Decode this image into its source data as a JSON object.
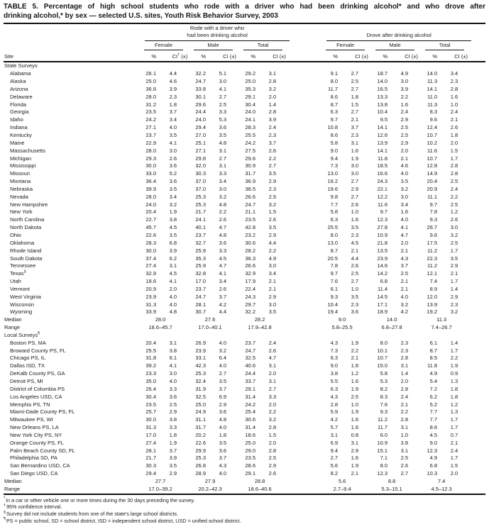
{
  "page": {
    "title_line1": "TABLE 5. Percentage of high school students who rode with a driver who had been drinking alcohol* and who drove after",
    "title_line2": "drinking alcohol,* by sex — selected U.S. sites, Youth Risk Behavior Survey, 2003"
  },
  "table": {
    "site_header": "Site",
    "pct_header": "%",
    "ci_base": "CI",
    "ci_dagger": "†",
    "ci_pm": " (±)",
    "ci_plain": "CI (±)",
    "groups": [
      {
        "title_lines": [
          "Rode with a driver who",
          "had been drinking alcohol"
        ],
        "sub": [
          "Female",
          "Male",
          "Total"
        ]
      },
      {
        "title_lines": [
          "Drove after drinking alcohol"
        ],
        "sub": [
          "Female",
          "Male",
          "Total"
        ]
      }
    ],
    "sections": [
      {
        "label": "State Surveys",
        "rows": [
          [
            "Alabama",
            "26.1",
            "4.4",
            "32.2",
            "5.1",
            "29.2",
            "3.1",
            "9.1",
            "2.7",
            "18.7",
            "4.9",
            "14.0",
            "3.4"
          ],
          [
            "Alaska",
            "25.0",
            "4.6",
            "24.7",
            "3.0",
            "25.0",
            "2.8",
            "8.0",
            "2.5",
            "14.0",
            "3.0",
            "11.3",
            "2.3"
          ],
          [
            "Arizona",
            "36.6",
            "3.9",
            "33.8",
            "4.1",
            "35.3",
            "3.2",
            "11.7",
            "2.7",
            "16.5",
            "3.9",
            "14.1",
            "2.8"
          ],
          [
            "Delaware",
            "28.0",
            "2.3",
            "30.1",
            "2.7",
            "29.1",
            "2.0",
            "8.6",
            "1.8",
            "13.3",
            "2.2",
            "11.0",
            "1.6"
          ],
          [
            "Florida",
            "31.2",
            "1.8",
            "29.6",
            "2.5",
            "30.4",
            "1.4",
            "8.7",
            "1.5",
            "13.8",
            "1.6",
            "11.3",
            "1.0"
          ],
          [
            "Georgia",
            "23.5",
            "3.7",
            "24.4",
            "3.3",
            "24.0",
            "2.8",
            "6.3",
            "2.7",
            "10.4",
            "2.4",
            "8.3",
            "2.4"
          ],
          [
            "Idaho",
            "24.2",
            "3.4",
            "24.0",
            "5.3",
            "24.1",
            "3.9",
            "9.7",
            "2.1",
            "9.5",
            "2.9",
            "9.6",
            "2.1"
          ],
          [
            "Indiana",
            "27.1",
            "4.0",
            "29.4",
            "3.6",
            "28.3",
            "2.4",
            "10.8",
            "3.7",
            "14.1",
            "2.5",
            "12.4",
            "2.6"
          ],
          [
            "Kentucky",
            "23.7",
            "3.5",
            "27.0",
            "3.5",
            "25.5",
            "2.3",
            "8.6",
            "2.3",
            "12.6",
            "2.5",
            "10.7",
            "1.8"
          ],
          [
            "Maine",
            "22.9",
            "4.1",
            "25.1",
            "4.8",
            "24.2",
            "3.7",
            "5.8",
            "3.1",
            "13.9",
            "2.9",
            "10.2",
            "2.0"
          ],
          [
            "Massachusetts",
            "28.0",
            "3.0",
            "27.1",
            "3.1",
            "27.5",
            "2.6",
            "9.0",
            "1.6",
            "14.1",
            "2.0",
            "11.6",
            "1.5"
          ],
          [
            "Michigan",
            "29.3",
            "2.6",
            "29.8",
            "2.7",
            "29.6",
            "2.2",
            "9.4",
            "1.9",
            "11.8",
            "2.1",
            "10.7",
            "1.7"
          ],
          [
            "Mississippi",
            "30.0",
            "3.6",
            "32.0",
            "3.1",
            "30.9",
            "2.7",
            "7.3",
            "3.0",
            "18.5",
            "4.6",
            "12.8",
            "2.8"
          ],
          [
            "Missouri",
            "33.0",
            "5.2",
            "30.3",
            "3.3",
            "31.7",
            "3.5",
            "13.0",
            "3.0",
            "16.6",
            "4.0",
            "14.9",
            "2.8"
          ],
          [
            "Montana",
            "36.4",
            "3.6",
            "37.0",
            "3.4",
            "36.9",
            "2.9",
            "16.2",
            "2.7",
            "24.3",
            "3.5",
            "20.4",
            "2.5"
          ],
          [
            "Nebraska",
            "39.9",
            "3.5",
            "37.0",
            "3.0",
            "38.5",
            "2.3",
            "19.6",
            "2.9",
            "22.1",
            "3.2",
            "20.9",
            "2.4"
          ],
          [
            "Nevada",
            "28.0",
            "3.4",
            "25.3",
            "3.2",
            "26.6",
            "2.5",
            "9.8",
            "2.7",
            "12.2",
            "3.0",
            "11.1",
            "2.2"
          ],
          [
            "New Hampshire",
            "24.0",
            "3.2",
            "25.3",
            "4.8",
            "24.7",
            "3.2",
            "7.7",
            "2.6",
            "11.6",
            "3.4",
            "9.7",
            "2.5"
          ],
          [
            "New York",
            "20.4",
            "1.9",
            "21.7",
            "2.2",
            "21.1",
            "1.5",
            "5.8",
            "1.0",
            "9.7",
            "1.6",
            "7.8",
            "1.2"
          ],
          [
            "North Carolina",
            "22.7",
            "3.8",
            "24.1",
            "2.6",
            "23.5",
            "2.6",
            "6.3",
            "1.6",
            "12.3",
            "4.0",
            "9.3",
            "2.6"
          ],
          [
            "North Dakota",
            "45.7",
            "4.5",
            "40.1",
            "4.7",
            "42.8",
            "3.5",
            "25.5",
            "3.5",
            "27.8",
            "4.1",
            "26.7",
            "3.0"
          ],
          [
            "Ohio",
            "22.6",
            "3.5",
            "23.7",
            "4.8",
            "23.2",
            "2.9",
            "8.0",
            "2.3",
            "10.9",
            "4.7",
            "9.6",
            "3.2"
          ],
          [
            "Oklahoma",
            "28.3",
            "6.8",
            "32.7",
            "3.6",
            "30.6",
            "4.4",
            "13.0",
            "4.5",
            "21.8",
            "2.0",
            "17.5",
            "2.5"
          ],
          [
            "Rhode Island",
            "30.0",
            "3.9",
            "25.9",
            "3.3",
            "28.2",
            "2.2",
            "8.7",
            "2.1",
            "13.5",
            "2.1",
            "11.2",
            "1.7"
          ],
          [
            "South Dakota",
            "37.4",
            "6.2",
            "35.3",
            "4.5",
            "36.3",
            "4.9",
            "20.5",
            "4.4",
            "23.9",
            "4.3",
            "22.3",
            "3.5"
          ],
          [
            "Tennessee",
            "27.4",
            "3.1",
            "25.9",
            "4.7",
            "26.6",
            "3.0",
            "7.8",
            "2.6",
            "14.6",
            "3.7",
            "11.2",
            "2.9"
          ],
          [
            "Texas§",
            "32.9",
            "4.5",
            "32.8",
            "4.1",
            "32.9",
            "3.4",
            "9.7",
            "2.5",
            "14.2",
            "2.5",
            "12.1",
            "2.1"
          ],
          [
            "Utah",
            "18.6",
            "4.1",
            "17.0",
            "3.4",
            "17.9",
            "2.1",
            "7.6",
            "2.7",
            "6.8",
            "2.1",
            "7.4",
            "1.7"
          ],
          [
            "Vermont",
            "20.9",
            "2.0",
            "23.7",
            "2.6",
            "22.4",
            "2.1",
            "6.1",
            "1.0",
            "11.4",
            "2.1",
            "8.9",
            "1.4"
          ],
          [
            "West Virginia",
            "23.9",
            "4.0",
            "24.7",
            "3.7",
            "24.3",
            "2.9",
            "9.3",
            "3.5",
            "14.5",
            "4.0",
            "12.0",
            "2.9"
          ],
          [
            "Wisconsin",
            "31.3",
            "4.0",
            "28.1",
            "4.2",
            "29.7",
            "3.0",
            "10.4",
            "2.3",
            "17.1",
            "3.2",
            "13.9",
            "2.3"
          ],
          [
            "Wyoming",
            "33.9",
            "4.8",
            "30.7",
            "4.4",
            "32.2",
            "3.5",
            "19.4",
            "3.6",
            "18.9",
            "4.2",
            "19.2",
            "3.2"
          ]
        ],
        "median_label": "Median",
        "median": [
          "28.0",
          "27.6",
          "28.2",
          "9.0",
          "14.0",
          "11.3"
        ],
        "range_label": "Range",
        "range": [
          "18.6–45.7",
          "17.0–40.1",
          "17.9–42.8",
          "5.8–25.5",
          "6.8–27.8",
          "7.4–26.7"
        ]
      },
      {
        "label": "Local Surveys¶",
        "rows": [
          [
            "Boston PS, MA",
            "20.4",
            "3.1",
            "26.9",
            "4.0",
            "23.7",
            "2.4",
            "4.3",
            "1.9",
            "8.0",
            "2.3",
            "6.1",
            "1.4"
          ],
          [
            "Broward County PS, FL",
            "25.5",
            "3.8",
            "23.9",
            "3.2",
            "24.7",
            "2.6",
            "7.3",
            "2.2",
            "10.1",
            "2.3",
            "8.7",
            "1.7"
          ],
          [
            "Chicago PS, IL",
            "31.8",
            "6.1",
            "33.1",
            "6.4",
            "32.5",
            "4.7",
            "6.3",
            "2.1",
            "10.7",
            "2.8",
            "8.5",
            "2.2"
          ],
          [
            "Dallas ISD, TX",
            "39.2",
            "4.1",
            "42.3",
            "4.0",
            "40.6",
            "3.1",
            "9.0",
            "1.8",
            "15.0",
            "3.1",
            "11.8",
            "1.9"
          ],
          [
            "DeKalb County PS, GA",
            "23.3",
            "3.0",
            "25.3",
            "2.7",
            "24.4",
            "2.0",
            "3.8",
            "1.2",
            "5.8",
            "1.4",
            "4.9",
            "0.9"
          ],
          [
            "Detroit PS, MI",
            "35.0",
            "4.0",
            "32.4",
            "3.5",
            "33.7",
            "3.1",
            "5.5",
            "1.6",
            "5.3",
            "2.0",
            "5.4",
            "1.3"
          ],
          [
            "District of Columbia PS",
            "26.4",
            "3.3",
            "31.9",
            "3.7",
            "29.1",
            "2.7",
            "6.3",
            "1.9",
            "8.2",
            "2.8",
            "7.2",
            "1.8"
          ],
          [
            "Los Angeles USD, CA",
            "30.4",
            "3.6",
            "32.5",
            "6.9",
            "31.4",
            "3.3",
            "4.3",
            "2.5",
            "8.3",
            "2.4",
            "6.2",
            "1.8"
          ],
          [
            "Memphis PS, TN",
            "23.5",
            "2.5",
            "25.0",
            "2.9",
            "24.2",
            "2.0",
            "2.8",
            "1.0",
            "7.6",
            "2.1",
            "5.2",
            "1.2"
          ],
          [
            "Miami-Dade County PS, FL",
            "25.7",
            "2.9",
            "24.9",
            "3.6",
            "25.4",
            "2.2",
            "5.9",
            "1.9",
            "9.3",
            "2.2",
            "7.7",
            "1.3"
          ],
          [
            "Milwaukee PS, WI",
            "30.0",
            "3.8",
            "31.1",
            "4.8",
            "30.6",
            "3.2",
            "4.2",
            "1.6",
            "11.2",
            "2.8",
            "7.7",
            "1.7"
          ],
          [
            "New Orleans PS, LA",
            "31.3",
            "3.3",
            "31.7",
            "4.0",
            "31.4",
            "2.8",
            "5.7",
            "1.6",
            "11.7",
            "3.1",
            "8.6",
            "1.7"
          ],
          [
            "New York City PS, NY",
            "17.0",
            "1.8",
            "20.2",
            "1.8",
            "18.6",
            "1.5",
            "3.1",
            "0.8",
            "6.0",
            "1.0",
            "4.5",
            "0.7"
          ],
          [
            "Orange County PS, FL",
            "27.4",
            "1.9",
            "22.6",
            "3.5",
            "25.0",
            "2.0",
            "6.9",
            "3.1",
            "10.9",
            "3.8",
            "9.0",
            "2.1"
          ],
          [
            "Palm Beach County SD, FL",
            "28.1",
            "3.7",
            "29.9",
            "3.6",
            "29.0",
            "2.8",
            "9.4",
            "2.9",
            "15.1",
            "3.1",
            "12.3",
            "2.4"
          ],
          [
            "Philadelphia SD, PA",
            "21.7",
            "3.9",
            "25.3",
            "3.7",
            "23.5",
            "2.5",
            "2.7",
            "1.6",
            "7.1",
            "2.5",
            "4.9",
            "1.7"
          ],
          [
            "San Bernardino USD, CA",
            "30.3",
            "3.5",
            "26.8",
            "4.3",
            "28.6",
            "2.9",
            "5.6",
            "1.9",
            "8.0",
            "2.6",
            "6.8",
            "1.5"
          ],
          [
            "San Diego USD, CA",
            "29.4",
            "2.9",
            "28.9",
            "4.0",
            "29.1",
            "2.6",
            "8.2",
            "2.1",
            "12.3",
            "2.7",
            "10.3",
            "2.0"
          ]
        ],
        "median_label": "Median",
        "median": [
          "27.7",
          "27.9",
          "28.8",
          "5.6",
          "8.8",
          "7.4"
        ],
        "range_label": "Range",
        "range": [
          "17.0–39.2",
          "20.2–42.3",
          "18.6–40.6",
          "2.7–9.4",
          "5.3–15.1",
          "4.5–12.3"
        ]
      }
    ]
  },
  "footnotes": [
    {
      "marker": "*",
      "text": "In a car or other vehicle one or more times during the 30 days preceding the survey."
    },
    {
      "marker": "†",
      "text": "95% confidence interval."
    },
    {
      "marker": "§",
      "text": "Survey did not include students from one of the state's large school districts."
    },
    {
      "marker": "¶",
      "text": "PS = public school, SD = school district, ISD = independent school district, USD = unified school district."
    }
  ]
}
